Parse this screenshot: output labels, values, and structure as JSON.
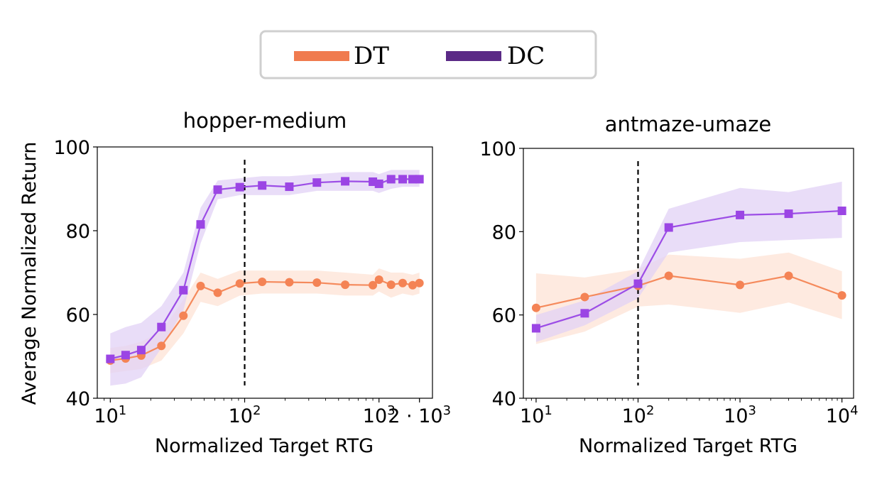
{
  "legend": {
    "items": [
      {
        "label": "DT",
        "color": "#f07b4f"
      },
      {
        "label": "DC",
        "color": "#5b2a86"
      }
    ],
    "placement": "top-center"
  },
  "colors": {
    "dt_line": "#f58a5c",
    "dt_marker": "#f48355",
    "dt_band": "#fde3d6",
    "dc_line": "#9c4de6",
    "dc_marker": "#9b45e4",
    "dc_band": "#e2d1f6"
  },
  "chart_data": [
    {
      "type": "line",
      "title": "hopper-medium",
      "xlabel": "Normalized Target RTG",
      "ylabel": "Average Normalized Return",
      "xscale": "log",
      "xlim": [
        8,
        2500
      ],
      "ylim": [
        40,
        100
      ],
      "yticks": [
        40,
        60,
        80,
        100
      ],
      "ytick_labels": [
        "40",
        "60",
        "80",
        "100"
      ],
      "xticks": [
        {
          "value": 10,
          "base": "10",
          "exp": "1"
        },
        {
          "value": 100,
          "base": "10",
          "exp": "2"
        },
        {
          "value": 1000,
          "base": "10",
          "exp": "3"
        },
        {
          "value": 2000,
          "base": "2 · 10",
          "exp": "3"
        }
      ],
      "vline_x": 100,
      "series": [
        {
          "name": "DT",
          "x": [
            10,
            13,
            17,
            24,
            35,
            47,
            63,
            92,
            135,
            215,
            345,
            560,
            900,
            1000,
            1230,
            1500,
            1780,
            2000
          ],
          "y": [
            49,
            49.5,
            50.2,
            52.5,
            59.7,
            66.8,
            65.2,
            67.4,
            67.8,
            67.7,
            67.6,
            67.1,
            67.0,
            68.3,
            67.1,
            67.5,
            67.0,
            67.5
          ],
          "lower": [
            46,
            46.5,
            47,
            49,
            55.5,
            63,
            62,
            64.5,
            65,
            65,
            65,
            64.5,
            64.5,
            65.5,
            64,
            65,
            64.5,
            65
          ],
          "upper": [
            52,
            52.5,
            53.5,
            56,
            63.5,
            70,
            68.5,
            70.5,
            70.5,
            70.5,
            70.5,
            70,
            69.5,
            71,
            70,
            70,
            69.5,
            70
          ]
        },
        {
          "name": "DC",
          "x": [
            10,
            13,
            17,
            24,
            35,
            47,
            63,
            92,
            135,
            215,
            345,
            560,
            900,
            1000,
            1230,
            1500,
            1780,
            2000
          ],
          "y": [
            49.4,
            50.3,
            51.5,
            57.0,
            65.8,
            81.5,
            89.8,
            90.4,
            90.8,
            90.5,
            91.5,
            91.8,
            91.7,
            91.2,
            92.3,
            92.3,
            92.3,
            92.3
          ],
          "lower": [
            43,
            43.5,
            45,
            52,
            61,
            77,
            87.5,
            88.5,
            88.5,
            88.5,
            89.5,
            89.5,
            89.5,
            89,
            90,
            90.5,
            90.5,
            90.5
          ],
          "upper": [
            55.5,
            57,
            58,
            62,
            70,
            85.5,
            92,
            92.5,
            93,
            93,
            93.5,
            94,
            94,
            93.5,
            94.5,
            94.5,
            94.5,
            94.5
          ]
        }
      ]
    },
    {
      "type": "line",
      "title": "antmaze-umaze",
      "xlabel": "Normalized Target RTG",
      "ylabel": "",
      "xscale": "log",
      "xlim": [
        7.5,
        13000
      ],
      "ylim": [
        40,
        100
      ],
      "yticks": [
        40,
        60,
        80,
        100
      ],
      "ytick_labels": [
        "40",
        "60",
        "80",
        "100"
      ],
      "xticks": [
        {
          "value": 10,
          "base": "10",
          "exp": "1"
        },
        {
          "value": 100,
          "base": "10",
          "exp": "2"
        },
        {
          "value": 1000,
          "base": "10",
          "exp": "3"
        },
        {
          "value": 10000,
          "base": "10",
          "exp": "4"
        }
      ],
      "vline_x": 100,
      "series": [
        {
          "name": "DT",
          "x": [
            10,
            30,
            100,
            200,
            1000,
            3000,
            10000
          ],
          "y": [
            61.7,
            64.3,
            67.0,
            69.4,
            67.2,
            69.4,
            64.7
          ],
          "lower": [
            53,
            56,
            62,
            62.5,
            60.5,
            63,
            59
          ],
          "upper": [
            70,
            69,
            71,
            74.5,
            73.5,
            75,
            70.5
          ]
        },
        {
          "name": "DC",
          "x": [
            10,
            30,
            100,
            200,
            1000,
            3000,
            10000
          ],
          "y": [
            56.8,
            60.4,
            67.5,
            81.0,
            84.0,
            84.3,
            85.0
          ],
          "lower": [
            53.5,
            57.5,
            64,
            75,
            77.5,
            78,
            78.5
          ],
          "upper": [
            60,
            63.5,
            70.5,
            85.5,
            90.5,
            89.5,
            92
          ]
        }
      ]
    }
  ]
}
